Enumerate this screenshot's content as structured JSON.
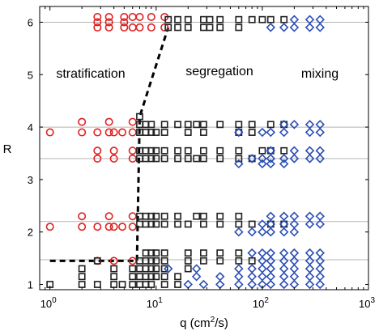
{
  "chart_data": {
    "type": "scatter",
    "title": "",
    "xscale": "log",
    "xlim": [
      0.8,
      1000
    ],
    "ylim": [
      0.9,
      6.3
    ],
    "x_ticks": [
      {
        "value": 1,
        "base": "10",
        "exp": "0"
      },
      {
        "value": 10,
        "base": "10",
        "exp": "1"
      },
      {
        "value": 100,
        "base": "10",
        "exp": "2"
      },
      {
        "value": 1000,
        "base": "10",
        "exp": "3"
      }
    ],
    "y_ticks": [
      "1",
      "2",
      "3",
      "4",
      "5",
      "6"
    ],
    "xlabel": {
      "prefix": "q (cm",
      "sup": "2",
      "suffix": "/s)"
    },
    "ylabel": "R",
    "hlines": [
      1.47,
      2.2,
      3.4,
      4.0,
      6.0
    ],
    "grid": "horizontal lines at R levels",
    "region_labels": [
      {
        "text": "stratification",
        "x": 2.8,
        "y": 5.3
      },
      {
        "text": "segregation",
        "x": 28,
        "y": 5.35
      },
      {
        "text": "mixing",
        "x": 300,
        "y": 5.3
      }
    ],
    "boundary_line": [
      [
        1.0,
        1.45
      ],
      [
        6.6,
        1.45
      ],
      [
        7.0,
        4.2
      ],
      [
        13,
        5.9
      ]
    ],
    "series": [
      {
        "marker": "circle",
        "color": "#e02020",
        "points": [
          [
            2.8,
            1.45
          ],
          [
            4.0,
            1.45
          ],
          [
            6.0,
            1.45
          ],
          [
            1.0,
            2.1
          ],
          [
            2.0,
            2.1
          ],
          [
            2.0,
            2.3
          ],
          [
            2.8,
            2.1
          ],
          [
            3.6,
            2.1
          ],
          [
            3.6,
            2.3
          ],
          [
            4.0,
            2.1
          ],
          [
            4.8,
            2.1
          ],
          [
            6.0,
            2.1
          ],
          [
            6.0,
            2.3
          ],
          [
            2.8,
            3.4
          ],
          [
            2.8,
            3.55
          ],
          [
            4.0,
            3.4
          ],
          [
            4.0,
            3.55
          ],
          [
            6.0,
            3.4
          ],
          [
            6.0,
            3.55
          ],
          [
            1.0,
            3.9
          ],
          [
            2.0,
            3.9
          ],
          [
            2.0,
            4.1
          ],
          [
            2.8,
            3.9
          ],
          [
            3.6,
            3.9
          ],
          [
            3.6,
            4.1
          ],
          [
            4.0,
            3.9
          ],
          [
            4.8,
            3.9
          ],
          [
            6.0,
            3.9
          ],
          [
            6.0,
            4.1
          ],
          [
            2.8,
            5.9
          ],
          [
            2.8,
            6.0
          ],
          [
            2.8,
            6.1
          ],
          [
            3.6,
            5.9
          ],
          [
            3.6,
            6.0
          ],
          [
            3.6,
            6.1
          ],
          [
            5.0,
            5.9
          ],
          [
            5.0,
            6.0
          ],
          [
            5.0,
            6.1
          ],
          [
            6.0,
            5.9
          ],
          [
            6.0,
            6.1
          ],
          [
            7.0,
            5.9
          ],
          [
            7.0,
            6.1
          ],
          [
            9.0,
            5.9
          ],
          [
            9.0,
            6.1
          ],
          [
            12.0,
            5.9
          ],
          [
            12.0,
            6.1
          ]
        ]
      },
      {
        "marker": "square",
        "color": "#202020",
        "points": [
          [
            1.0,
            1.0
          ],
          [
            2.0,
            1.0
          ],
          [
            2.0,
            1.15
          ],
          [
            2.0,
            1.3
          ],
          [
            2.8,
            1.0
          ],
          [
            2.8,
            1.45
          ],
          [
            4.0,
            1.0
          ],
          [
            4.0,
            1.15
          ],
          [
            4.0,
            1.3
          ],
          [
            4.8,
            1.0
          ],
          [
            6.0,
            1.0
          ],
          [
            6.0,
            1.15
          ],
          [
            6.0,
            1.3
          ],
          [
            7.0,
            1.0
          ],
          [
            7.0,
            1.15
          ],
          [
            7.0,
            1.3
          ],
          [
            7.0,
            1.45
          ],
          [
            8.0,
            1.0
          ],
          [
            8.0,
            1.15
          ],
          [
            8.0,
            1.3
          ],
          [
            8.0,
            1.45
          ],
          [
            8.0,
            1.6
          ],
          [
            9.0,
            1.0
          ],
          [
            9.0,
            1.15
          ],
          [
            9.0,
            1.3
          ],
          [
            9.0,
            1.45
          ],
          [
            9.0,
            1.6
          ],
          [
            10.0,
            1.15
          ],
          [
            10.0,
            1.3
          ],
          [
            10.0,
            1.45
          ],
          [
            10.0,
            1.6
          ],
          [
            12.0,
            1.0
          ],
          [
            12.0,
            1.15
          ],
          [
            12.0,
            1.3
          ],
          [
            12.0,
            1.45
          ],
          [
            12.0,
            1.6
          ],
          [
            16.0,
            1.0
          ],
          [
            16.0,
            1.15
          ],
          [
            20.0,
            1.3
          ],
          [
            20.0,
            1.45
          ],
          [
            20.0,
            1.6
          ],
          [
            28.0,
            1.45
          ],
          [
            28.0,
            1.6
          ],
          [
            40.0,
            1.45
          ],
          [
            40.0,
            1.6
          ],
          [
            60.0,
            1.45
          ],
          [
            60.0,
            1.6
          ],
          [
            80.0,
            1.45
          ],
          [
            7.0,
            2.15
          ],
          [
            7.0,
            2.3
          ],
          [
            8.0,
            2.15
          ],
          [
            8.0,
            2.3
          ],
          [
            9.0,
            2.15
          ],
          [
            9.0,
            2.3
          ],
          [
            10.0,
            2.15
          ],
          [
            10.0,
            2.3
          ],
          [
            12.0,
            2.15
          ],
          [
            12.0,
            2.3
          ],
          [
            16.0,
            2.15
          ],
          [
            16.0,
            2.3
          ],
          [
            20.0,
            2.15
          ],
          [
            24.0,
            2.3
          ],
          [
            28.0,
            2.15
          ],
          [
            28.0,
            2.3
          ],
          [
            40.0,
            2.15
          ],
          [
            40.0,
            2.3
          ],
          [
            60.0,
            2.15
          ],
          [
            60.0,
            2.3
          ],
          [
            80.0,
            2.15
          ],
          [
            120.0,
            2.15
          ],
          [
            160.0,
            2.15
          ],
          [
            7.0,
            3.4
          ],
          [
            7.0,
            3.55
          ],
          [
            8.0,
            3.4
          ],
          [
            8.0,
            3.55
          ],
          [
            9.0,
            3.4
          ],
          [
            9.0,
            3.55
          ],
          [
            10.0,
            3.4
          ],
          [
            10.0,
            3.55
          ],
          [
            12.0,
            3.4
          ],
          [
            12.0,
            3.55
          ],
          [
            16.0,
            3.4
          ],
          [
            16.0,
            3.55
          ],
          [
            20.0,
            3.4
          ],
          [
            20.0,
            3.55
          ],
          [
            24.0,
            3.4
          ],
          [
            28.0,
            3.4
          ],
          [
            28.0,
            3.55
          ],
          [
            40.0,
            3.4
          ],
          [
            40.0,
            3.55
          ],
          [
            60.0,
            3.4
          ],
          [
            60.0,
            3.55
          ],
          [
            80.0,
            3.4
          ],
          [
            100.0,
            3.55
          ],
          [
            120.0,
            3.55
          ],
          [
            160.0,
            3.55
          ],
          [
            7.0,
            3.9
          ],
          [
            7.0,
            4.05
          ],
          [
            7.0,
            4.2
          ],
          [
            8.0,
            3.9
          ],
          [
            8.0,
            4.05
          ],
          [
            9.0,
            3.9
          ],
          [
            9.0,
            4.05
          ],
          [
            10.0,
            3.9
          ],
          [
            12.0,
            3.9
          ],
          [
            12.0,
            4.05
          ],
          [
            16.0,
            4.05
          ],
          [
            20.0,
            3.9
          ],
          [
            20.0,
            4.05
          ],
          [
            24.0,
            4.05
          ],
          [
            28.0,
            3.9
          ],
          [
            28.0,
            4.05
          ],
          [
            40.0,
            4.05
          ],
          [
            60.0,
            3.9
          ],
          [
            60.0,
            4.05
          ],
          [
            80.0,
            3.9
          ],
          [
            80.0,
            4.05
          ],
          [
            120.0,
            4.05
          ],
          [
            160.0,
            4.05
          ],
          [
            13.0,
            5.9
          ],
          [
            13.0,
            6.05
          ],
          [
            16.0,
            5.9
          ],
          [
            16.0,
            6.05
          ],
          [
            20.0,
            5.9
          ],
          [
            20.0,
            6.05
          ],
          [
            28.0,
            5.9
          ],
          [
            28.0,
            6.05
          ],
          [
            32.0,
            5.9
          ],
          [
            32.0,
            6.05
          ],
          [
            40.0,
            5.9
          ],
          [
            40.0,
            6.05
          ],
          [
            60.0,
            5.9
          ],
          [
            60.0,
            6.05
          ],
          [
            80.0,
            6.05
          ],
          [
            100.0,
            6.05
          ],
          [
            120.0,
            6.05
          ],
          [
            160.0,
            6.05
          ]
        ]
      },
      {
        "marker": "diamond",
        "color": "#2a4db5",
        "points": [
          [
            13.0,
            1.3
          ],
          [
            20.0,
            1.0
          ],
          [
            24.0,
            1.15
          ],
          [
            24.0,
            1.3
          ],
          [
            28.0,
            1.0
          ],
          [
            40.0,
            1.0
          ],
          [
            40.0,
            1.15
          ],
          [
            60.0,
            1.0
          ],
          [
            60.0,
            1.15
          ],
          [
            60.0,
            1.3
          ],
          [
            80.0,
            1.0
          ],
          [
            80.0,
            1.15
          ],
          [
            80.0,
            1.3
          ],
          [
            80.0,
            1.6
          ],
          [
            100.0,
            1.0
          ],
          [
            100.0,
            1.15
          ],
          [
            100.0,
            1.3
          ],
          [
            100.0,
            1.45
          ],
          [
            100.0,
            1.6
          ],
          [
            120.0,
            1.0
          ],
          [
            120.0,
            1.15
          ],
          [
            120.0,
            1.3
          ],
          [
            120.0,
            1.45
          ],
          [
            120.0,
            1.6
          ],
          [
            160.0,
            1.0
          ],
          [
            160.0,
            1.15
          ],
          [
            160.0,
            1.3
          ],
          [
            160.0,
            1.45
          ],
          [
            160.0,
            1.6
          ],
          [
            200.0,
            1.0
          ],
          [
            200.0,
            1.15
          ],
          [
            200.0,
            1.3
          ],
          [
            200.0,
            1.45
          ],
          [
            200.0,
            1.6
          ],
          [
            280.0,
            1.0
          ],
          [
            280.0,
            1.15
          ],
          [
            280.0,
            1.3
          ],
          [
            280.0,
            1.45
          ],
          [
            280.0,
            1.6
          ],
          [
            350.0,
            1.0
          ],
          [
            350.0,
            1.15
          ],
          [
            350.0,
            1.3
          ],
          [
            350.0,
            1.45
          ],
          [
            350.0,
            1.6
          ],
          [
            60.0,
            2.0
          ],
          [
            80.0,
            2.0
          ],
          [
            100.0,
            2.0
          ],
          [
            100.0,
            2.15
          ],
          [
            120.0,
            2.0
          ],
          [
            120.0,
            2.15
          ],
          [
            120.0,
            2.3
          ],
          [
            160.0,
            2.0
          ],
          [
            160.0,
            2.15
          ],
          [
            160.0,
            2.3
          ],
          [
            200.0,
            2.0
          ],
          [
            200.0,
            2.15
          ],
          [
            200.0,
            2.3
          ],
          [
            280.0,
            2.15
          ],
          [
            280.0,
            2.3
          ],
          [
            350.0,
            2.15
          ],
          [
            350.0,
            2.3
          ],
          [
            60.0,
            3.3
          ],
          [
            80.0,
            3.4
          ],
          [
            100.0,
            3.3
          ],
          [
            100.0,
            3.4
          ],
          [
            120.0,
            3.3
          ],
          [
            120.0,
            3.4
          ],
          [
            120.0,
            3.55
          ],
          [
            160.0,
            3.3
          ],
          [
            160.0,
            3.4
          ],
          [
            200.0,
            3.4
          ],
          [
            200.0,
            3.55
          ],
          [
            280.0,
            3.4
          ],
          [
            280.0,
            3.55
          ],
          [
            350.0,
            3.4
          ],
          [
            350.0,
            3.55
          ],
          [
            60.0,
            3.9
          ],
          [
            100.0,
            3.9
          ],
          [
            120.0,
            3.9
          ],
          [
            160.0,
            3.9
          ],
          [
            160.0,
            4.05
          ],
          [
            200.0,
            4.05
          ],
          [
            280.0,
            3.9
          ],
          [
            280.0,
            4.05
          ],
          [
            350.0,
            3.9
          ],
          [
            350.0,
            4.05
          ],
          [
            120.0,
            5.9
          ],
          [
            160.0,
            5.9
          ],
          [
            200.0,
            5.9
          ],
          [
            200.0,
            6.05
          ],
          [
            280.0,
            5.9
          ],
          [
            280.0,
            6.05
          ],
          [
            350.0,
            5.9
          ],
          [
            350.0,
            6.05
          ]
        ]
      }
    ]
  }
}
